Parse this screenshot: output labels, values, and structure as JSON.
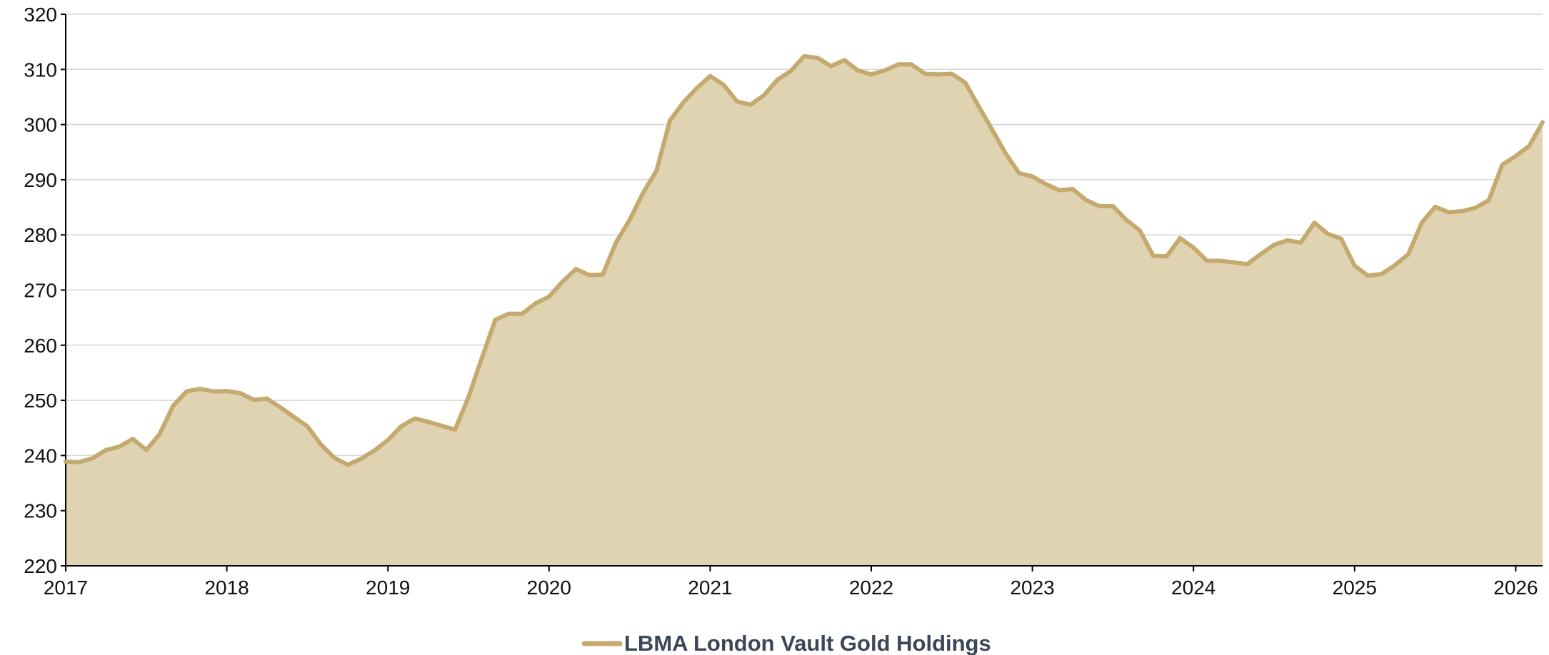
{
  "chart_data": {
    "type": "area",
    "title": "",
    "xlabel": "",
    "ylabel": "",
    "ylim": [
      220,
      320
    ],
    "xlim": [
      "2017-01",
      "2026-03"
    ],
    "y_ticks": [
      "220",
      "230",
      "240",
      "250",
      "260",
      "270",
      "280",
      "290",
      "300",
      "310",
      "320"
    ],
    "x_ticks": [
      "2017",
      "2018",
      "2019",
      "2020",
      "2021",
      "2022",
      "2023",
      "2024",
      "2025",
      "2026"
    ],
    "grid": "horizontal",
    "legend_position": "bottom-center",
    "colors": {
      "line": "#c4aa6e",
      "fill": "#e0d3b2",
      "grid": "#d6d6d6",
      "legend_text": "#3b4656"
    },
    "series": [
      {
        "name": "LBMA London Vault Gold Holdings",
        "points": [
          [
            "2017-01",
            238.9
          ],
          [
            "2017-02",
            238.8
          ],
          [
            "2017-03",
            239.5
          ],
          [
            "2017-04",
            241.0
          ],
          [
            "2017-05",
            241.6
          ],
          [
            "2017-06",
            243.0
          ],
          [
            "2017-07",
            241.0
          ],
          [
            "2017-08",
            243.9
          ],
          [
            "2017-09",
            249.0
          ],
          [
            "2017-10",
            251.6
          ],
          [
            "2017-11",
            252.1
          ],
          [
            "2017-12",
            251.6
          ],
          [
            "2018-01",
            251.7
          ],
          [
            "2018-02",
            251.3
          ],
          [
            "2018-03",
            250.1
          ],
          [
            "2018-04",
            250.3
          ],
          [
            "2018-05",
            248.7
          ],
          [
            "2018-06",
            247.0
          ],
          [
            "2018-07",
            245.3
          ],
          [
            "2018-08",
            242.0
          ],
          [
            "2018-09",
            239.6
          ],
          [
            "2018-10",
            238.3
          ],
          [
            "2018-11",
            239.4
          ],
          [
            "2018-12",
            240.9
          ],
          [
            "2019-01",
            242.8
          ],
          [
            "2019-02",
            245.3
          ],
          [
            "2019-03",
            246.7
          ],
          [
            "2019-04",
            246.1
          ],
          [
            "2019-05",
            245.4
          ],
          [
            "2019-06",
            244.7
          ],
          [
            "2019-07",
            250.6
          ],
          [
            "2019-08",
            257.7
          ],
          [
            "2019-09",
            264.6
          ],
          [
            "2019-10",
            265.7
          ],
          [
            "2019-11",
            265.7
          ],
          [
            "2019-12",
            267.6
          ],
          [
            "2020-01",
            268.8
          ],
          [
            "2020-02",
            271.5
          ],
          [
            "2020-03",
            273.8
          ],
          [
            "2020-04",
            272.7
          ],
          [
            "2020-05",
            272.8
          ],
          [
            "2020-06",
            278.7
          ],
          [
            "2020-07",
            282.7
          ],
          [
            "2020-08",
            287.6
          ],
          [
            "2020-09",
            291.6
          ],
          [
            "2020-10",
            300.7
          ],
          [
            "2020-11",
            304.0
          ],
          [
            "2020-12",
            306.6
          ],
          [
            "2021-01",
            308.8
          ],
          [
            "2021-02",
            307.2
          ],
          [
            "2021-03",
            304.2
          ],
          [
            "2021-04",
            303.6
          ],
          [
            "2021-05",
            305.3
          ],
          [
            "2021-06",
            308.1
          ],
          [
            "2021-07",
            309.7
          ],
          [
            "2021-08",
            312.4
          ],
          [
            "2021-09",
            312.1
          ],
          [
            "2021-10",
            310.6
          ],
          [
            "2021-11",
            311.7
          ],
          [
            "2021-12",
            309.8
          ],
          [
            "2022-01",
            309.1
          ],
          [
            "2022-02",
            309.8
          ],
          [
            "2022-03",
            310.9
          ],
          [
            "2022-04",
            310.9
          ],
          [
            "2022-05",
            309.2
          ],
          [
            "2022-06",
            309.1
          ],
          [
            "2022-07",
            309.2
          ],
          [
            "2022-08",
            307.6
          ],
          [
            "2022-09",
            303.3
          ],
          [
            "2022-10",
            299.1
          ],
          [
            "2022-11",
            294.8
          ],
          [
            "2022-12",
            291.2
          ],
          [
            "2023-01",
            290.6
          ],
          [
            "2023-02",
            289.2
          ],
          [
            "2023-03",
            288.1
          ],
          [
            "2023-04",
            288.3
          ],
          [
            "2023-05",
            286.3
          ],
          [
            "2023-06",
            285.2
          ],
          [
            "2023-07",
            285.2
          ],
          [
            "2023-08",
            282.7
          ],
          [
            "2023-09",
            280.8
          ],
          [
            "2023-10",
            276.2
          ],
          [
            "2023-11",
            276.1
          ],
          [
            "2023-12",
            279.4
          ],
          [
            "2024-01",
            277.7
          ],
          [
            "2024-02",
            275.3
          ],
          [
            "2024-03",
            275.3
          ],
          [
            "2024-04",
            275.0
          ],
          [
            "2024-05",
            274.7
          ],
          [
            "2024-06",
            276.5
          ],
          [
            "2024-07",
            278.2
          ],
          [
            "2024-08",
            279.0
          ],
          [
            "2024-09",
            278.6
          ],
          [
            "2024-10",
            282.2
          ],
          [
            "2024-11",
            280.2
          ],
          [
            "2024-12",
            279.3
          ],
          [
            "2025-01",
            274.4
          ],
          [
            "2025-02",
            272.6
          ],
          [
            "2025-03",
            272.9
          ],
          [
            "2025-04",
            274.5
          ],
          [
            "2025-05",
            276.5
          ],
          [
            "2025-06",
            282.2
          ],
          [
            "2025-07",
            285.1
          ],
          [
            "2025-08",
            284.1
          ],
          [
            "2025-09",
            284.3
          ],
          [
            "2025-10",
            284.9
          ],
          [
            "2025-11",
            286.3
          ],
          [
            "2025-12",
            292.7
          ],
          [
            "2026-01",
            294.3
          ],
          [
            "2026-02",
            296.1
          ],
          [
            "2026-03",
            300.4
          ]
        ]
      }
    ]
  }
}
